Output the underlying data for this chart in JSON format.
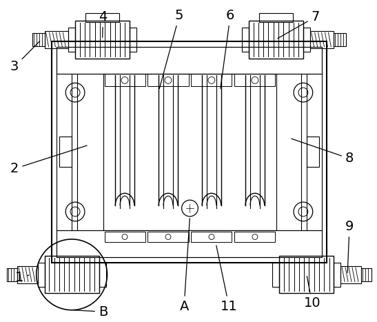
{
  "background_color": "#ffffff",
  "line_color": "#000000",
  "label_fontsize": 14,
  "figsize": [
    5.47,
    4.67
  ],
  "dpi": 100
}
